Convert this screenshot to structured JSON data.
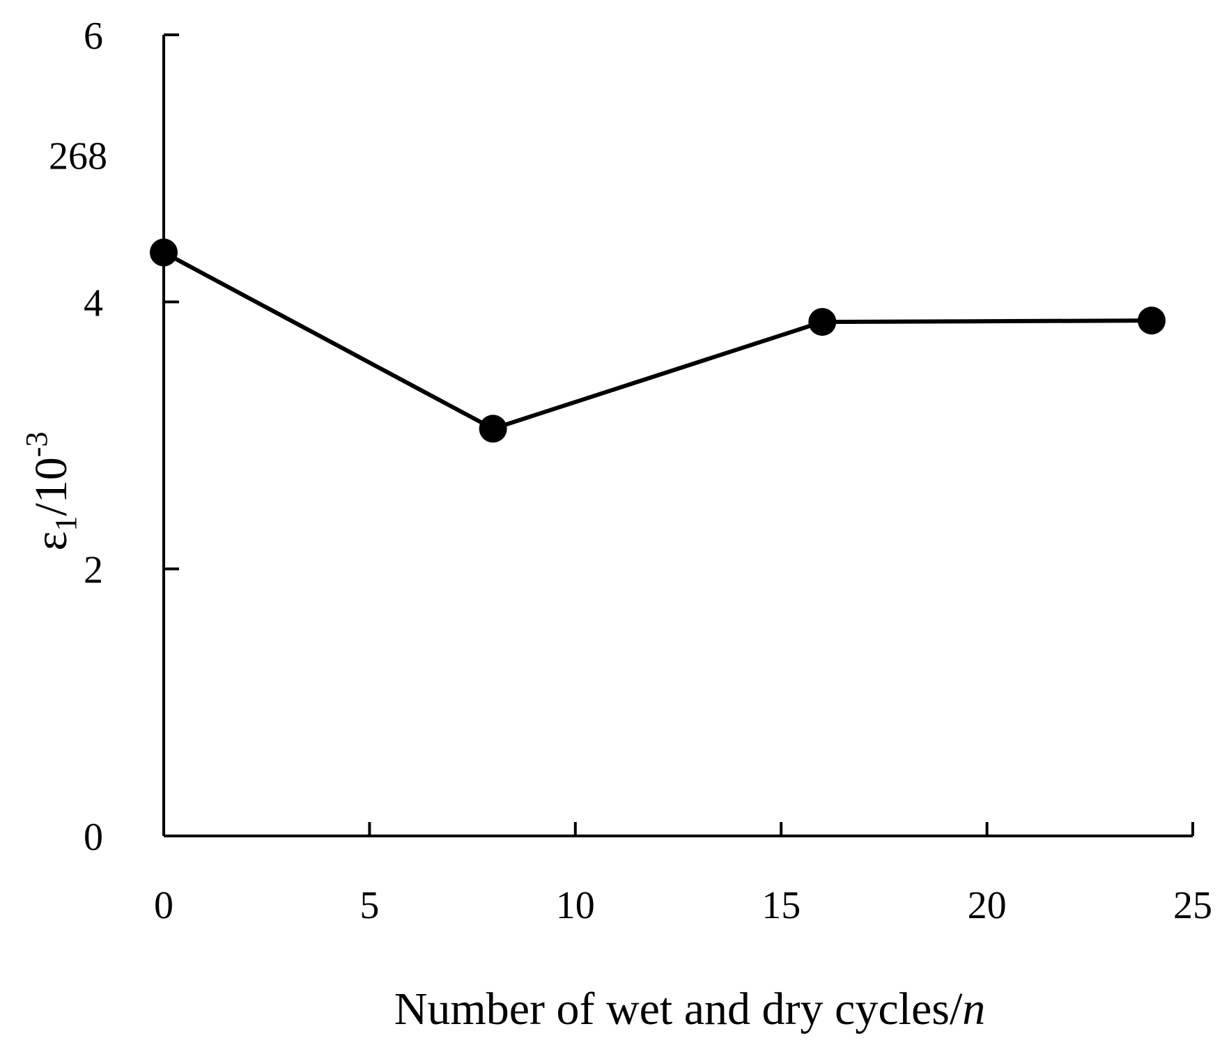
{
  "chart_data": {
    "type": "line",
    "title": "",
    "xlabel": "Number of wet and dry cycles/",
    "xlabel_var": "n",
    "ylabel": {
      "base": "ε",
      "subscript": "1",
      "unit": "/10",
      "exponent": "-3"
    },
    "xlim": [
      0,
      25
    ],
    "ylim": [
      0,
      6
    ],
    "x_ticks": [
      0,
      5,
      10,
      15,
      20,
      25
    ],
    "y_ticks": [
      0,
      2,
      4,
      6
    ],
    "x_tick_labels": [
      "0",
      "5",
      "10",
      "15",
      "20",
      "25"
    ],
    "y_tick_labels": [
      "0",
      "2",
      "4",
      "6"
    ],
    "stray_label": {
      "text": "268",
      "y": 5.1
    },
    "grid": false,
    "legend": "none",
    "series": [
      {
        "name": "ε1",
        "x": [
          0,
          8,
          16,
          24
        ],
        "y": [
          4.37,
          3.05,
          3.85,
          3.86
        ]
      }
    ]
  }
}
